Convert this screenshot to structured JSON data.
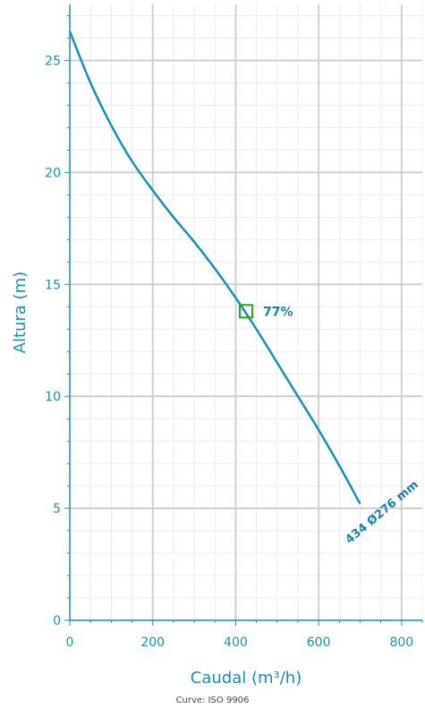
{
  "chart_data": {
    "type": "line",
    "xlabel": "Caudal (m³/h)",
    "ylabel": "Altura (m)",
    "xlim": [
      0,
      850
    ],
    "ylim": [
      0,
      27.5
    ],
    "x_ticks": [
      0,
      200,
      400,
      600,
      800
    ],
    "y_ticks": [
      0,
      5,
      10,
      15,
      20,
      25
    ],
    "grid": true,
    "series": [
      {
        "name": "434 Ø276 mm",
        "color": "#1a8fb0",
        "x": [
          0,
          50,
          100,
          150,
          200,
          250,
          300,
          350,
          400,
          450,
          500,
          550,
          600,
          650,
          700
        ],
        "y": [
          26.3,
          24.0,
          22.1,
          20.5,
          19.2,
          18.0,
          16.9,
          15.7,
          14.4,
          13.0,
          11.5,
          10.0,
          8.5,
          6.9,
          5.2
        ]
      }
    ],
    "annotations": [
      {
        "type": "marker",
        "x": 425,
        "y": 13.8,
        "label": "77%",
        "color": "#22aa22"
      }
    ]
  },
  "footnote": "Curve: ISO 9906"
}
